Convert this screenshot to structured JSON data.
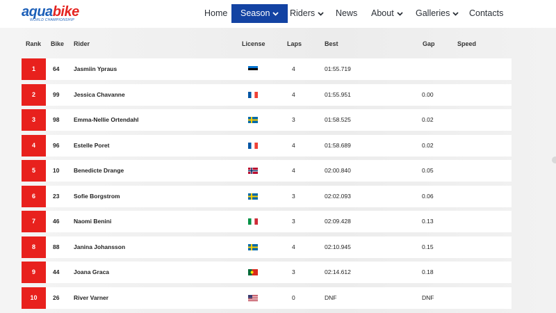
{
  "brand": {
    "logo_word_part1": "aqua",
    "logo_word_part2": "bike",
    "logo_sub": "WORLD CHAMPIONSHIP",
    "primary_color": "#1343a3",
    "accent_color": "#e8211d"
  },
  "nav": {
    "items": [
      {
        "label": "Home",
        "active": false,
        "dropdown": false
      },
      {
        "label": "Season",
        "active": true,
        "dropdown": true
      },
      {
        "label": "Riders",
        "active": false,
        "dropdown": true
      },
      {
        "label": "News",
        "active": false,
        "dropdown": false
      },
      {
        "label": "About",
        "active": false,
        "dropdown": true
      },
      {
        "label": "Galleries",
        "active": false,
        "dropdown": true
      },
      {
        "label": "Contacts",
        "active": false,
        "dropdown": false
      }
    ]
  },
  "table": {
    "headers": {
      "rank": "Rank",
      "bike": "Bike",
      "rider": "Rider",
      "license": "License",
      "laps": "Laps",
      "best": "Best",
      "gap": "Gap",
      "speed": "Speed"
    },
    "rows": [
      {
        "rank": "1",
        "bike": "64",
        "rider": "Jasmiin Ypraus",
        "license_flag": "estonia-flag",
        "laps": "4",
        "best": "01:55.719",
        "gap": "",
        "speed": ""
      },
      {
        "rank": "2",
        "bike": "99",
        "rider": "Jessica Chavanne",
        "license_flag": "france-flag",
        "laps": "4",
        "best": "01:55.951",
        "gap": "0.00",
        "speed": ""
      },
      {
        "rank": "3",
        "bike": "98",
        "rider": "Emma-Nellie Ortendahl",
        "license_flag": "sweden-flag",
        "laps": "3",
        "best": "01:58.525",
        "gap": "0.02",
        "speed": ""
      },
      {
        "rank": "4",
        "bike": "96",
        "rider": "Estelle Poret",
        "license_flag": "france-flag",
        "laps": "4",
        "best": "01:58.689",
        "gap": "0.02",
        "speed": ""
      },
      {
        "rank": "5",
        "bike": "10",
        "rider": "Benedicte Drange",
        "license_flag": "norway-flag",
        "laps": "4",
        "best": "02:00.840",
        "gap": "0.05",
        "speed": ""
      },
      {
        "rank": "6",
        "bike": "23",
        "rider": "Sofie Borgstrom",
        "license_flag": "sweden-flag",
        "laps": "3",
        "best": "02:02.093",
        "gap": "0.06",
        "speed": ""
      },
      {
        "rank": "7",
        "bike": "46",
        "rider": "Naomi Benini",
        "license_flag": "italy-flag",
        "laps": "3",
        "best": "02:09.428",
        "gap": "0.13",
        "speed": ""
      },
      {
        "rank": "8",
        "bike": "88",
        "rider": "Janina Johansson",
        "license_flag": "sweden-flag",
        "laps": "4",
        "best": "02:10.945",
        "gap": "0.15",
        "speed": ""
      },
      {
        "rank": "9",
        "bike": "44",
        "rider": "Joana Graca",
        "license_flag": "portugal-flag",
        "laps": "3",
        "best": "02:14.612",
        "gap": "0.18",
        "speed": ""
      },
      {
        "rank": "10",
        "bike": "26",
        "rider": "River Varner",
        "license_flag": "usa-flag",
        "laps": "0",
        "best": "DNF",
        "gap": "DNF",
        "speed": ""
      }
    ]
  }
}
